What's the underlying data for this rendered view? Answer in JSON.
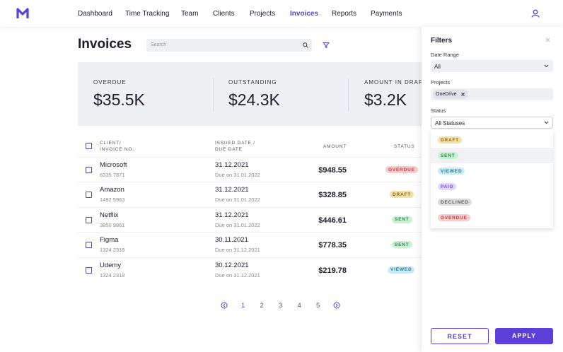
{
  "nav": {
    "items": [
      "Dashboard",
      "Time Tracking",
      "Team",
      "Clients",
      "Projects",
      "Invoices",
      "Reports",
      "Payments"
    ]
  },
  "header": {
    "title": "Invoices",
    "search_placeholder": "Search"
  },
  "summary": [
    {
      "label": "OVERDUE",
      "value": "$35.5K"
    },
    {
      "label": "OUTSTANDING",
      "value": "$24.3K"
    },
    {
      "label": "AMOUNT IN DRAFT",
      "value": "$3.2K"
    }
  ],
  "table": {
    "columns": [
      "CLIENT/\nINVOICE NO.",
      "ISSUED DATE /\nDUE DATE",
      "AMOUNT",
      "STATUS"
    ],
    "rows": [
      {
        "client": "Microsoft",
        "invoice": "6335 7871",
        "issued": "31.12.2021",
        "due": "Due on 31.01.2022",
        "amount": "$948.55",
        "status": "OVERDUE"
      },
      {
        "client": "Amazon",
        "invoice": "1492 5963",
        "issued": "31.12.2021",
        "due": "Due on 31.01.2022",
        "amount": "$328.85",
        "status": "DRAFT"
      },
      {
        "client": "Netflix",
        "invoice": "3850 9861",
        "issued": "31.12.2021",
        "due": "Due on 31.01.2022",
        "amount": "$446.61",
        "status": "SENT"
      },
      {
        "client": "Figma",
        "invoice": "1324 2318",
        "issued": "30.11.2021",
        "due": "Due on 31.12.2021",
        "amount": "$778.35",
        "status": "SENT"
      },
      {
        "client": "Udemy",
        "invoice": "1324 2318",
        "issued": "30.12.2021",
        "due": "Due on 31.12.2021",
        "amount": "$219.78",
        "status": "VIEWED"
      }
    ]
  },
  "pagination": {
    "pages": [
      "1",
      "2",
      "3",
      "4",
      "5"
    ]
  },
  "filters": {
    "title": "Filters",
    "date_range": {
      "label": "Date Range",
      "value": "All"
    },
    "projects": {
      "label": "Projects",
      "chip": "OneDrive"
    },
    "status": {
      "label": "Status",
      "value": "All Statuses",
      "options": [
        {
          "label": "DRAFT",
          "color": "#8a6a1a",
          "background": "#f3dfa8"
        },
        {
          "label": "SENT",
          "color": "#2f8a4a",
          "background": "#c9f0d3"
        },
        {
          "label": "VIEWED",
          "color": "#2a7d96",
          "background": "#c7ecf6"
        },
        {
          "label": "PAID",
          "color": "#7a4fd0",
          "background": "#e2d5fb"
        },
        {
          "label": "DECLINED",
          "color": "#5e5e5e",
          "background": "#dcdcdc"
        },
        {
          "label": "OVERDUE",
          "color": "#c33b3b",
          "background": "#f8cccc"
        }
      ]
    },
    "reset": "RESET",
    "apply": "APPLY"
  }
}
